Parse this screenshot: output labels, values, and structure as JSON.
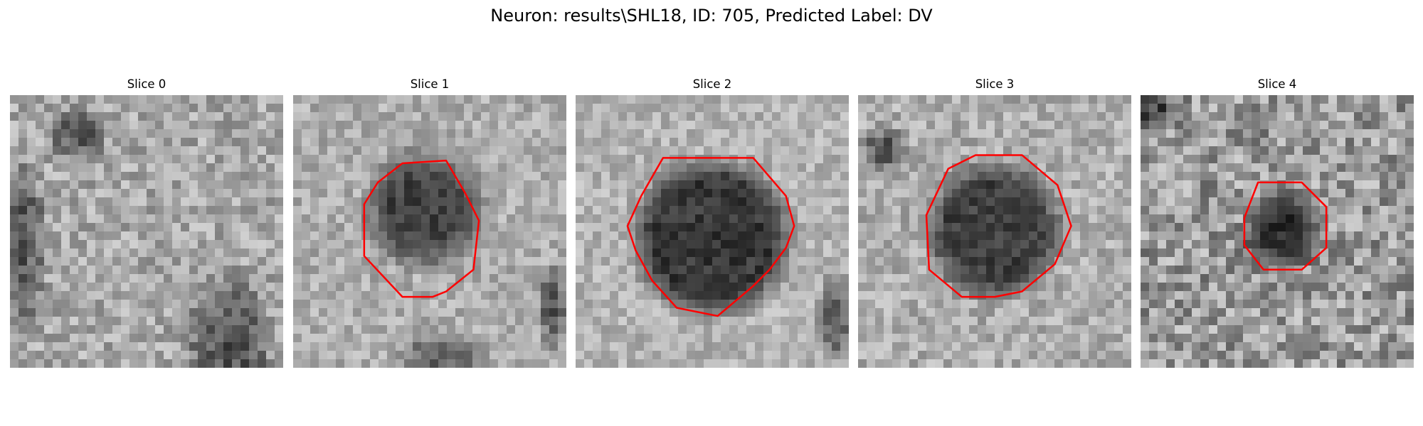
{
  "figure": {
    "title": "Neuron: results\\SHL18, ID: 705, Predicted Label: DV"
  },
  "colors": {
    "contour": "#ff0000",
    "background": "#ffffff"
  },
  "panels": [
    {
      "title": "Slice 0",
      "has_contour": false
    },
    {
      "title": "Slice 1",
      "has_contour": true
    },
    {
      "title": "Slice 2",
      "has_contour": true
    },
    {
      "title": "Slice 3",
      "has_contour": true
    },
    {
      "title": "Slice 4",
      "has_contour": true
    }
  ]
}
